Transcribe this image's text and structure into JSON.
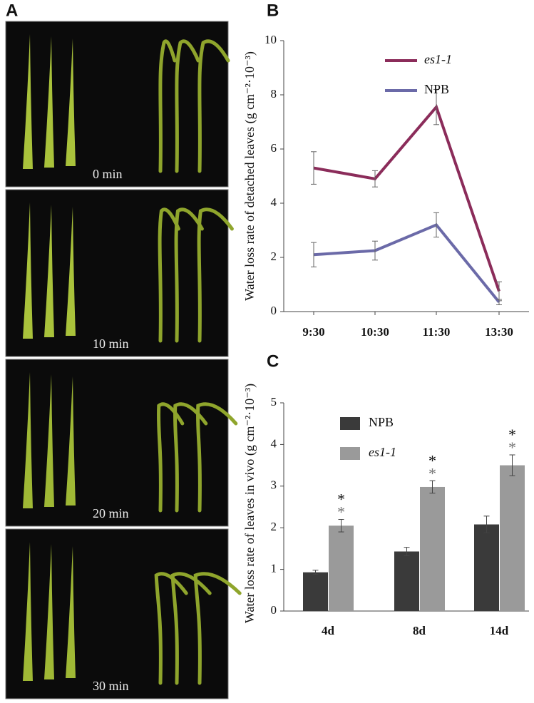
{
  "panel_labels": [
    "A",
    "B",
    "C"
  ],
  "photo_panel": {
    "time_labels": [
      "0 min",
      "10 min",
      "20 min",
      "30 min"
    ]
  },
  "chart_data": [
    {
      "type": "line",
      "y_label": "Water loss rate of detached leaves (g cm⁻²·10⁻³)",
      "categories": [
        "9:30",
        "10:30",
        "11:30",
        "13:30"
      ],
      "series": [
        {
          "name": "es1-1",
          "color": "#8b2c5a",
          "font_style": "italic",
          "values": [
            5.3,
            4.9,
            7.55,
            0.75
          ],
          "errors": [
            0.6,
            0.3,
            0.65,
            0.35
          ]
        },
        {
          "name": "NPB",
          "color": "#6b6aa8",
          "font_style": "normal",
          "values": [
            2.1,
            2.25,
            3.2,
            0.35
          ],
          "errors": [
            0.45,
            0.35,
            0.45,
            0.1
          ]
        }
      ],
      "ylim": [
        0,
        10
      ],
      "yticks": [
        0,
        2,
        4,
        6,
        8,
        10
      ],
      "legend": "upper right"
    },
    {
      "type": "bar",
      "y_label": "Water loss rate of  leaves in vivo (g cm⁻²·10⁻³)",
      "categories": [
        "4d",
        "8d",
        "14d"
      ],
      "series": [
        {
          "name": "NPB",
          "color": "#3a3a3a",
          "font_style": "normal",
          "values": [
            0.93,
            1.43,
            2.08
          ],
          "errors": [
            0.05,
            0.1,
            0.2
          ]
        },
        {
          "name": "es1-1",
          "color": "#9a9a9a",
          "font_style": "italic",
          "values": [
            2.05,
            2.98,
            3.5
          ],
          "errors": [
            0.15,
            0.15,
            0.25
          ]
        }
      ],
      "significance": [
        [
          "*",
          "*"
        ],
        [
          "*",
          "*"
        ],
        [
          "*",
          "*"
        ]
      ],
      "ylim": [
        0,
        5
      ],
      "yticks": [
        0,
        1,
        2,
        3,
        4,
        5
      ],
      "legend": "upper center"
    }
  ]
}
